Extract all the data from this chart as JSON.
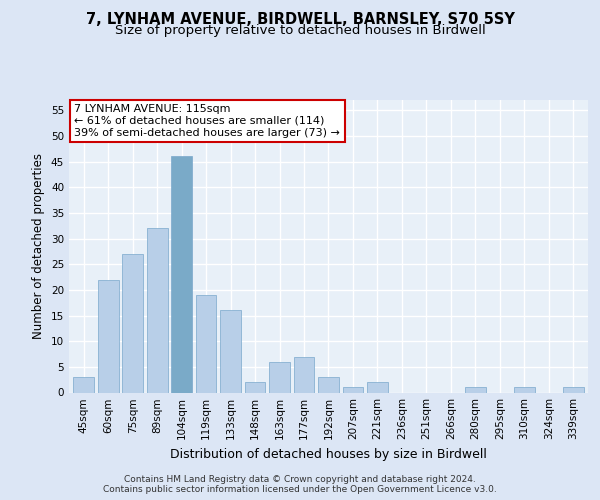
{
  "title": "7, LYNHAM AVENUE, BIRDWELL, BARNSLEY, S70 5SY",
  "subtitle": "Size of property relative to detached houses in Birdwell",
  "xlabel": "Distribution of detached houses by size in Birdwell",
  "ylabel": "Number of detached properties",
  "categories": [
    "45sqm",
    "60sqm",
    "75sqm",
    "89sqm",
    "104sqm",
    "119sqm",
    "133sqm",
    "148sqm",
    "163sqm",
    "177sqm",
    "192sqm",
    "207sqm",
    "221sqm",
    "236sqm",
    "251sqm",
    "266sqm",
    "280sqm",
    "295sqm",
    "310sqm",
    "324sqm",
    "339sqm"
  ],
  "values": [
    3,
    22,
    27,
    32,
    46,
    19,
    16,
    2,
    6,
    7,
    3,
    1,
    2,
    0,
    0,
    0,
    1,
    0,
    1,
    0,
    1
  ],
  "bar_color": "#b8cfe8",
  "bar_edge_color": "#7aa8cc",
  "highlight_index": 4,
  "highlight_color": "#7aaac8",
  "annotation_text": "7 LYNHAM AVENUE: 115sqm\n← 61% of detached houses are smaller (114)\n39% of semi-detached houses are larger (73) →",
  "annotation_box_color": "#ffffff",
  "annotation_box_edge": "#cc0000",
  "ylim": [
    0,
    57
  ],
  "yticks": [
    0,
    5,
    10,
    15,
    20,
    25,
    30,
    35,
    40,
    45,
    50,
    55
  ],
  "bg_color": "#dce6f5",
  "plot_bg_color": "#e8f0f8",
  "footer": "Contains HM Land Registry data © Crown copyright and database right 2024.\nContains public sector information licensed under the Open Government Licence v3.0.",
  "title_fontsize": 10.5,
  "subtitle_fontsize": 9.5,
  "xlabel_fontsize": 9,
  "ylabel_fontsize": 8.5,
  "tick_fontsize": 7.5,
  "annotation_fontsize": 8,
  "footer_fontsize": 6.5
}
